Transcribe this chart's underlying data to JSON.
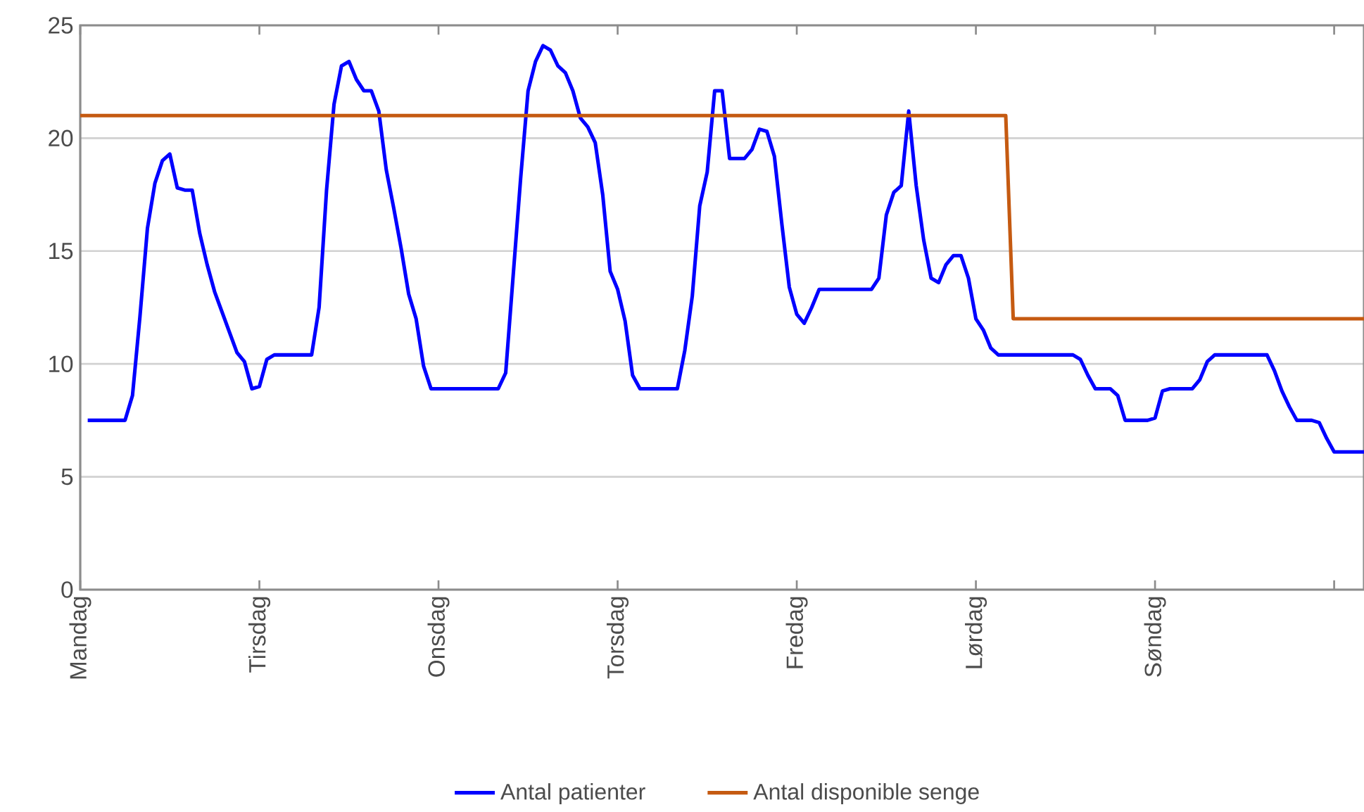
{
  "chart_data": {
    "type": "line",
    "ylim": [
      0,
      25
    ],
    "categories": [
      "Mandag",
      null,
      null,
      null,
      null,
      null,
      null,
      null,
      null,
      null,
      null,
      null,
      null,
      null,
      null,
      null,
      null,
      null,
      null,
      null,
      null,
      null,
      null,
      null,
      "Tirsdag",
      null,
      null,
      null,
      null,
      null,
      null,
      null,
      null,
      null,
      null,
      null,
      null,
      null,
      null,
      null,
      null,
      null,
      null,
      null,
      null,
      null,
      null,
      null,
      "Onsdag",
      null,
      null,
      null,
      null,
      null,
      null,
      null,
      null,
      null,
      null,
      null,
      null,
      null,
      null,
      null,
      null,
      null,
      null,
      null,
      null,
      null,
      null,
      null,
      "Torsdag",
      null,
      null,
      null,
      null,
      null,
      null,
      null,
      null,
      null,
      null,
      null,
      null,
      null,
      null,
      null,
      null,
      null,
      null,
      null,
      null,
      null,
      null,
      null,
      "Fredag",
      null,
      null,
      null,
      null,
      null,
      null,
      null,
      null,
      null,
      null,
      null,
      null,
      null,
      null,
      null,
      null,
      null,
      null,
      null,
      null,
      null,
      null,
      null,
      "Lørdag",
      null,
      null,
      null,
      null,
      null,
      null,
      null,
      null,
      null,
      null,
      null,
      null,
      null,
      null,
      null,
      null,
      null,
      null,
      null,
      null,
      null,
      null,
      null,
      "Søndag",
      null,
      null,
      null,
      null,
      null,
      null,
      null,
      null,
      null,
      null,
      null,
      null,
      null,
      null,
      null,
      null,
      null,
      null,
      null,
      null,
      null,
      null,
      null,
      null,
      null,
      null,
      null,
      null
    ],
    "yticks": [
      0,
      5,
      10,
      15,
      20,
      25
    ],
    "grid": "y",
    "legend": "bottom",
    "marker": "none",
    "line_style": "solid",
    "series": [
      {
        "name": "Antal patienter",
        "color": "#0000ff",
        "values": [
          null,
          7.5,
          7.5,
          7.5,
          7.5,
          7.5,
          7.5,
          8.6,
          12.1,
          16.0,
          18.0,
          19.0,
          19.3,
          17.8,
          17.7,
          17.7,
          15.8,
          14.4,
          13.2,
          12.3,
          11.4,
          10.5,
          10.1,
          8.9,
          9.0,
          10.2,
          10.4,
          10.4,
          10.4,
          10.4,
          10.4,
          10.4,
          12.5,
          17.7,
          21.5,
          23.2,
          23.4,
          22.6,
          22.1,
          22.1,
          21.2,
          18.6,
          16.9,
          15.1,
          13.1,
          12.0,
          9.9,
          8.9,
          8.9,
          8.9,
          8.9,
          8.9,
          8.9,
          8.9,
          8.9,
          8.9,
          8.9,
          9.6,
          13.9,
          18.2,
          22.1,
          23.4,
          24.1,
          23.9,
          23.2,
          22.9,
          22.1,
          20.9,
          20.5,
          19.8,
          17.5,
          14.1,
          13.3,
          11.9,
          9.5,
          8.9,
          8.9,
          8.9,
          8.9,
          8.9,
          8.9,
          10.6,
          13.0,
          17.0,
          18.5,
          22.1,
          22.1,
          19.1,
          19.1,
          19.1,
          19.5,
          20.4,
          20.3,
          19.2,
          16.2,
          13.4,
          12.2,
          11.8,
          12.5,
          13.3,
          13.3,
          13.3,
          13.3,
          13.3,
          13.3,
          13.3,
          13.3,
          13.8,
          16.6,
          17.6,
          17.9,
          21.2,
          17.9,
          15.5,
          13.8,
          13.6,
          14.4,
          14.8,
          14.8,
          13.8,
          12.0,
          11.5,
          10.7,
          10.4,
          10.4,
          10.4,
          10.4,
          10.4,
          10.4,
          10.4,
          10.4,
          10.4,
          10.4,
          10.4,
          10.2,
          9.5,
          8.9,
          8.9,
          8.9,
          8.6,
          7.5,
          7.5,
          7.5,
          7.5,
          7.6,
          8.8,
          8.9,
          8.9,
          8.9,
          8.9,
          9.3,
          10.1,
          10.4,
          10.4,
          10.4,
          10.4,
          10.4,
          10.4,
          10.4,
          10.4,
          9.7,
          8.8,
          8.1,
          7.5,
          7.5,
          7.5,
          7.4,
          6.7,
          6.1,
          6.1,
          6.1,
          6.1,
          6.1
        ]
      },
      {
        "name": "Antal disponible senge",
        "color": "#c55a11",
        "values": [
          21,
          21,
          21,
          21,
          21,
          21,
          21,
          21,
          21,
          21,
          21,
          21,
          21,
          21,
          21,
          21,
          21,
          21,
          21,
          21,
          21,
          21,
          21,
          21,
          21,
          21,
          21,
          21,
          21,
          21,
          21,
          21,
          21,
          21,
          21,
          21,
          21,
          21,
          21,
          21,
          21,
          21,
          21,
          21,
          21,
          21,
          21,
          21,
          21,
          21,
          21,
          21,
          21,
          21,
          21,
          21,
          21,
          21,
          21,
          21,
          21,
          21,
          21,
          21,
          21,
          21,
          21,
          21,
          21,
          21,
          21,
          21,
          21,
          21,
          21,
          21,
          21,
          21,
          21,
          21,
          21,
          21,
          21,
          21,
          21,
          21,
          21,
          21,
          21,
          21,
          21,
          21,
          21,
          21,
          21,
          21,
          21,
          21,
          21,
          21,
          21,
          21,
          21,
          21,
          21,
          21,
          21,
          21,
          21,
          21,
          21,
          21,
          21,
          21,
          21,
          21,
          21,
          21,
          21,
          21,
          21,
          21,
          21,
          21,
          21,
          12,
          12,
          12,
          12,
          12,
          12,
          12,
          12,
          12,
          12,
          12,
          12,
          12,
          12,
          12,
          12,
          12,
          12,
          12,
          12,
          12,
          12,
          12,
          12,
          12,
          12,
          12,
          12,
          12,
          12,
          12,
          12,
          12,
          12,
          12,
          12,
          12,
          12,
          12,
          12,
          12,
          12,
          12,
          12,
          12,
          12,
          12,
          12
        ]
      }
    ]
  }
}
